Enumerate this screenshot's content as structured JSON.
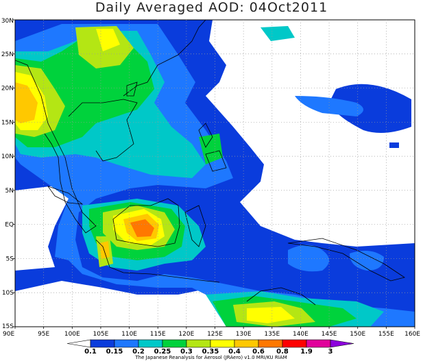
{
  "title": "Daily Averaged AOD: 04Oct2011",
  "credit": "The Japanese Reanalysis for Aerosol (JRAero) v1.0 MRI/KU RIAM",
  "map": {
    "lon_range": [
      90,
      160
    ],
    "lat_range": [
      -15,
      30
    ],
    "lon_ticks": [
      90,
      95,
      100,
      105,
      110,
      115,
      120,
      125,
      130,
      135,
      140,
      145,
      150,
      155,
      160
    ],
    "lon_labels": [
      "90E",
      "95E",
      "100E",
      "105E",
      "110E",
      "115E",
      "120E",
      "125E",
      "130E",
      "135E",
      "140E",
      "145E",
      "150E",
      "155E",
      "160E"
    ],
    "lat_ticks": [
      30,
      25,
      20,
      15,
      10,
      5,
      0,
      -5,
      -10,
      -15
    ],
    "lat_labels": [
      "30N",
      "25N",
      "20N",
      "15N",
      "10N",
      "5N",
      "EQ",
      "5S",
      "10S",
      "15S"
    ],
    "grid": "dotted"
  },
  "colorbar": {
    "labels": [
      "0.1",
      "0.15",
      "0.2",
      "0.25",
      "0.3",
      "0.35",
      "0.4",
      "0.6",
      "0.8",
      "1.9",
      "3"
    ],
    "colors": [
      "#ffffff",
      "#0a3cdc",
      "#1e78ff",
      "#00c8c8",
      "#00d23c",
      "#b4e614",
      "#ffff00",
      "#ffc800",
      "#ff7800",
      "#ff0000",
      "#e1009b",
      "#8c00dc"
    ]
  }
}
